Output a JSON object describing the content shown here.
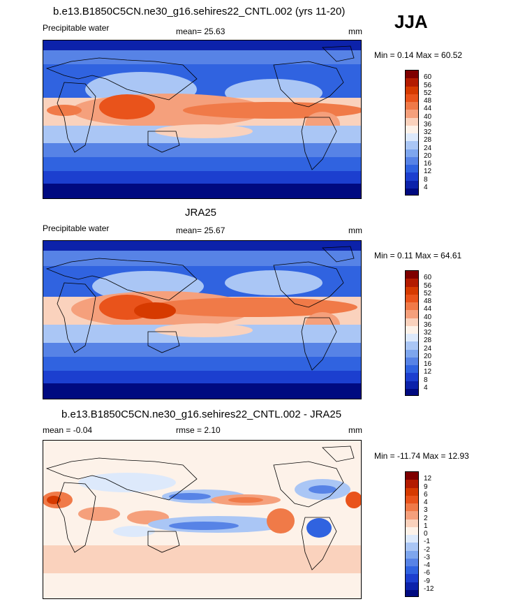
{
  "season": "JJA",
  "panels": [
    {
      "title": "b.e13.B1850C5CN.ne30_g16.sehires22_CNTL.002 (yrs 11-20)",
      "left_label": "Precipitable water",
      "center_label": "mean=  25.63",
      "units": "mm",
      "minmax": "Min =   0.14 Max =  60.52",
      "levels": [
        "60",
        "56",
        "52",
        "48",
        "44",
        "40",
        "36",
        "32",
        "28",
        "24",
        "20",
        "16",
        "12",
        "8",
        "4"
      ],
      "colors": [
        "#7f0000",
        "#b31b00",
        "#d63a00",
        "#e9531b",
        "#f07a48",
        "#f5a07c",
        "#fad2bd",
        "#fdf2e9",
        "#dde9fb",
        "#aac6f5",
        "#7ea6ee",
        "#5783e6",
        "#3063e0",
        "#1c3fcf",
        "#0c22aa",
        "#000a80"
      ]
    },
    {
      "title": "JRA25",
      "left_label": "Precipitable water",
      "center_label": "mean=  25.67",
      "units": "mm",
      "minmax": "Min =   0.11 Max =  64.61",
      "levels": [
        "60",
        "56",
        "52",
        "48",
        "44",
        "40",
        "36",
        "32",
        "28",
        "24",
        "20",
        "16",
        "12",
        "8",
        "4"
      ],
      "colors": [
        "#7f0000",
        "#b31b00",
        "#d63a00",
        "#e9531b",
        "#f07a48",
        "#f5a07c",
        "#fad2bd",
        "#fdf2e9",
        "#dde9fb",
        "#aac6f5",
        "#7ea6ee",
        "#5783e6",
        "#3063e0",
        "#1c3fcf",
        "#0c22aa",
        "#000a80"
      ]
    },
    {
      "title": "b.e13.B1850C5CN.ne30_g16.sehires22_CNTL.002 - JRA25",
      "left_label": "mean =  -0.04",
      "center_label": "rmse =   2.10",
      "units": "mm",
      "minmax": "Min = -11.74 Max =  12.93",
      "levels": [
        "12",
        "9",
        "6",
        "4",
        "3",
        "2",
        "1",
        "0",
        "-1",
        "-2",
        "-3",
        "-4",
        "-6",
        "-9",
        "-12"
      ],
      "colors": [
        "#7f0000",
        "#b31b00",
        "#d63a00",
        "#e9531b",
        "#f07a48",
        "#f5a07c",
        "#fad2bd",
        "#fdf2e9",
        "#dde9fb",
        "#aac6f5",
        "#7ea6ee",
        "#5783e6",
        "#3063e0",
        "#1c3fcf",
        "#0c22aa",
        "#000a80"
      ]
    }
  ]
}
